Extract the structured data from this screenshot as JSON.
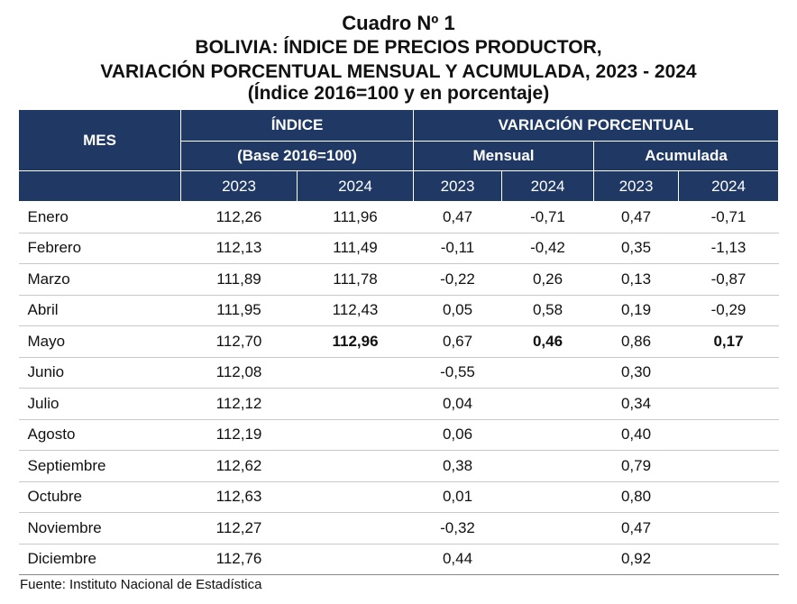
{
  "title": {
    "line1": "Cuadro Nº 1",
    "line2": "BOLIVIA: ÍNDICE DE PRECIOS PRODUCTOR,",
    "line3": "VARIACIÓN PORCENTUAL MENSUAL Y ACUMULADA, 2023 - 2024",
    "line4": "(Índice 2016=100 y en porcentaje)"
  },
  "header": {
    "mes": "MES",
    "indice": "ÍNDICE",
    "base": "(Base 2016=100)",
    "variacion": "VARIACIÓN PORCENTUAL",
    "mensual": "Mensual",
    "acumulada": "Acumulada",
    "years": [
      "2023",
      "2024",
      "2023",
      "2024",
      "2023",
      "2024"
    ]
  },
  "rows": [
    {
      "mes": "Enero",
      "i2023": "112,26",
      "i2024": "111,96",
      "m2023": "0,47",
      "m2024": "-0,71",
      "a2023": "0,47",
      "a2024": "-0,71"
    },
    {
      "mes": "Febrero",
      "i2023": "112,13",
      "i2024": "111,49",
      "m2023": "-0,11",
      "m2024": "-0,42",
      "a2023": "0,35",
      "a2024": "-1,13"
    },
    {
      "mes": "Marzo",
      "i2023": "111,89",
      "i2024": "111,78",
      "m2023": "-0,22",
      "m2024": "0,26",
      "a2023": "0,13",
      "a2024": "-0,87"
    },
    {
      "mes": "Abril",
      "i2023": "111,95",
      "i2024": "112,43",
      "m2023": "0,05",
      "m2024": "0,58",
      "a2023": "0,19",
      "a2024": "-0,29"
    },
    {
      "mes": "Mayo",
      "i2023": "112,70",
      "i2024": "112,96",
      "m2023": "0,67",
      "m2024": "0,46",
      "a2023": "0,86",
      "a2024": "0,17"
    },
    {
      "mes": "Junio",
      "i2023": "112,08",
      "i2024": "",
      "m2023": "-0,55",
      "m2024": "",
      "a2023": "0,30",
      "a2024": ""
    },
    {
      "mes": "Julio",
      "i2023": "112,12",
      "i2024": "",
      "m2023": "0,04",
      "m2024": "",
      "a2023": "0,34",
      "a2024": ""
    },
    {
      "mes": "Agosto",
      "i2023": "112,19",
      "i2024": "",
      "m2023": "0,06",
      "m2024": "",
      "a2023": "0,40",
      "a2024": ""
    },
    {
      "mes": "Septiembre",
      "i2023": "112,62",
      "i2024": "",
      "m2023": "0,38",
      "m2024": "",
      "a2023": "0,79",
      "a2024": ""
    },
    {
      "mes": "Octubre",
      "i2023": "112,63",
      "i2024": "",
      "m2023": "0,01",
      "m2024": "",
      "a2023": "0,80",
      "a2024": ""
    },
    {
      "mes": "Noviembre",
      "i2023": "112,27",
      "i2024": "",
      "m2023": "-0,32",
      "m2024": "",
      "a2023": "0,47",
      "a2024": ""
    },
    {
      "mes": "Diciembre",
      "i2023": "112,76",
      "i2024": "",
      "m2023": "0,44",
      "m2024": "",
      "a2023": "0,92",
      "a2024": ""
    }
  ],
  "source": "Fuente: Instituto Nacional de Estadística",
  "colors": {
    "header_bg": "#1f3864",
    "header_text": "#ffffff"
  }
}
